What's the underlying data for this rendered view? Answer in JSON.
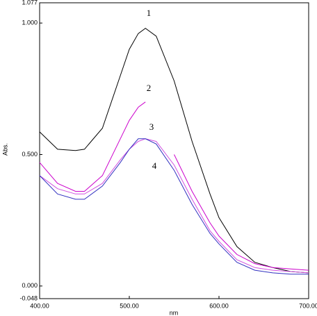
{
  "chart_data": {
    "type": "line",
    "xlabel": "nm",
    "ylabel": "Abs.",
    "x": [
      400,
      420,
      440,
      450,
      470,
      490,
      500,
      510,
      518,
      530,
      550,
      570,
      590,
      600,
      620,
      640,
      660,
      680,
      700
    ],
    "series": [
      {
        "name": "1",
        "color": "#000000",
        "values": [
          0.586,
          0.52,
          0.515,
          0.52,
          0.6,
          0.8,
          0.9,
          0.96,
          0.98,
          0.95,
          0.78,
          0.55,
          0.35,
          0.26,
          0.15,
          0.09,
          0.07,
          0.055,
          0.05
        ]
      },
      {
        "name": "2",
        "color": "#cc00cc",
        "values": [
          0.47,
          0.39,
          0.36,
          0.36,
          0.42,
          0.56,
          0.63,
          0.68,
          0.7,
          null,
          0.5,
          0.36,
          0.24,
          0.19,
          0.12,
          0.085,
          0.07,
          0.065,
          0.06
        ]
      },
      {
        "name": "3",
        "color": "#d050e0",
        "values": [
          0.42,
          0.37,
          0.35,
          0.35,
          0.39,
          0.48,
          0.52,
          0.55,
          0.56,
          0.55,
          0.46,
          0.33,
          0.21,
          0.17,
          0.1,
          0.07,
          0.06,
          0.055,
          0.05
        ]
      },
      {
        "name": "4",
        "color": "#3030c0",
        "values": [
          0.42,
          0.35,
          0.33,
          0.33,
          0.38,
          0.47,
          0.52,
          0.56,
          0.56,
          0.54,
          0.44,
          0.31,
          0.2,
          0.16,
          0.09,
          0.06,
          0.05,
          0.045,
          0.045
        ]
      }
    ],
    "xlim": [
      400,
      700
    ],
    "xticks": [
      {
        "value": 400,
        "label": "400.00"
      },
      {
        "value": 500,
        "label": "500.00"
      },
      {
        "value": 600,
        "label": "600.00"
      },
      {
        "value": 700,
        "label": "700.00"
      }
    ],
    "ylim": [
      -0.048,
      1.077
    ],
    "yticks": [
      {
        "value": -0.048,
        "label": "-0.048"
      },
      {
        "value": 0,
        "label": "0.000"
      },
      {
        "value": 0.5,
        "label": "0.500"
      },
      {
        "value": 1,
        "label": "1.000"
      },
      {
        "value": 1.077,
        "label": "1.077"
      }
    ],
    "grid": false
  }
}
